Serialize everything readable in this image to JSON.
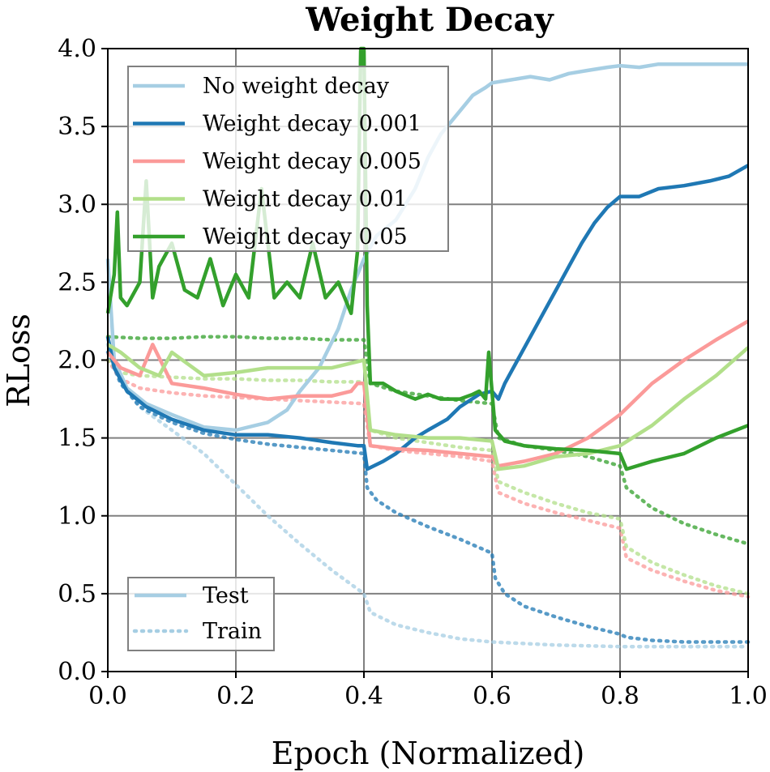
{
  "chart_data": {
    "type": "line",
    "title": "Weight Decay",
    "xlabel": "Epoch (Normalized)",
    "ylabel": "RLoss",
    "xlim": [
      0.0,
      1.0
    ],
    "ylim": [
      0.0,
      4.0
    ],
    "xticks": [
      "0.0",
      "0.2",
      "0.4",
      "0.6",
      "0.8",
      "1.0"
    ],
    "yticks": [
      "0.0",
      "0.5",
      "1.0",
      "1.5",
      "2.0",
      "2.5",
      "3.0",
      "3.5",
      "4.0"
    ],
    "grid": true,
    "legend_placement": "top-left",
    "style_legend_placement": "bottom-left",
    "style_legend": [
      {
        "label": "Test",
        "dash": "solid"
      },
      {
        "label": "Train",
        "dash": "dotted"
      }
    ],
    "series": [
      {
        "name": "No weight decay",
        "color": "#a6cee3",
        "test": [
          [
            0.0,
            2.65
          ],
          [
            0.01,
            2.0
          ],
          [
            0.03,
            1.82
          ],
          [
            0.06,
            1.72
          ],
          [
            0.1,
            1.65
          ],
          [
            0.15,
            1.57
          ],
          [
            0.2,
            1.55
          ],
          [
            0.25,
            1.6
          ],
          [
            0.28,
            1.68
          ],
          [
            0.3,
            1.8
          ],
          [
            0.33,
            1.95
          ],
          [
            0.36,
            2.2
          ],
          [
            0.38,
            2.45
          ],
          [
            0.4,
            2.65
          ],
          [
            0.42,
            2.8
          ],
          [
            0.45,
            2.9
          ],
          [
            0.48,
            3.1
          ],
          [
            0.5,
            3.3
          ],
          [
            0.52,
            3.45
          ],
          [
            0.55,
            3.6
          ],
          [
            0.57,
            3.7
          ],
          [
            0.59,
            3.75
          ],
          [
            0.6,
            3.78
          ],
          [
            0.63,
            3.8
          ],
          [
            0.66,
            3.82
          ],
          [
            0.69,
            3.8
          ],
          [
            0.72,
            3.84
          ],
          [
            0.75,
            3.86
          ],
          [
            0.78,
            3.88
          ],
          [
            0.8,
            3.89
          ],
          [
            0.83,
            3.88
          ],
          [
            0.86,
            3.9
          ],
          [
            0.9,
            3.9
          ],
          [
            0.95,
            3.9
          ],
          [
            1.0,
            3.9
          ]
        ],
        "train": [
          [
            0.0,
            2.1
          ],
          [
            0.02,
            1.85
          ],
          [
            0.05,
            1.7
          ],
          [
            0.1,
            1.55
          ],
          [
            0.15,
            1.4
          ],
          [
            0.2,
            1.2
          ],
          [
            0.25,
            1.0
          ],
          [
            0.3,
            0.82
          ],
          [
            0.35,
            0.65
          ],
          [
            0.4,
            0.5
          ],
          [
            0.41,
            0.38
          ],
          [
            0.45,
            0.3
          ],
          [
            0.5,
            0.25
          ],
          [
            0.55,
            0.21
          ],
          [
            0.6,
            0.19
          ],
          [
            0.65,
            0.18
          ],
          [
            0.7,
            0.17
          ],
          [
            0.8,
            0.16
          ],
          [
            0.9,
            0.16
          ],
          [
            1.0,
            0.16
          ]
        ]
      },
      {
        "name": "Weight decay 0.001",
        "color": "#1f78b4",
        "test": [
          [
            0.0,
            2.15
          ],
          [
            0.01,
            1.95
          ],
          [
            0.03,
            1.8
          ],
          [
            0.06,
            1.7
          ],
          [
            0.1,
            1.62
          ],
          [
            0.15,
            1.55
          ],
          [
            0.2,
            1.52
          ],
          [
            0.25,
            1.52
          ],
          [
            0.3,
            1.5
          ],
          [
            0.35,
            1.47
          ],
          [
            0.39,
            1.45
          ],
          [
            0.4,
            1.45
          ],
          [
            0.405,
            1.3
          ],
          [
            0.43,
            1.35
          ],
          [
            0.45,
            1.4
          ],
          [
            0.48,
            1.5
          ],
          [
            0.5,
            1.55
          ],
          [
            0.53,
            1.62
          ],
          [
            0.55,
            1.7
          ],
          [
            0.58,
            1.78
          ],
          [
            0.6,
            1.8
          ],
          [
            0.61,
            1.75
          ],
          [
            0.62,
            1.85
          ],
          [
            0.64,
            2.0
          ],
          [
            0.66,
            2.15
          ],
          [
            0.68,
            2.3
          ],
          [
            0.7,
            2.45
          ],
          [
            0.72,
            2.6
          ],
          [
            0.74,
            2.75
          ],
          [
            0.76,
            2.88
          ],
          [
            0.78,
            2.98
          ],
          [
            0.8,
            3.05
          ],
          [
            0.83,
            3.05
          ],
          [
            0.86,
            3.1
          ],
          [
            0.9,
            3.12
          ],
          [
            0.94,
            3.15
          ],
          [
            0.97,
            3.18
          ],
          [
            1.0,
            3.25
          ]
        ],
        "train": [
          [
            0.0,
            2.05
          ],
          [
            0.02,
            1.85
          ],
          [
            0.05,
            1.7
          ],
          [
            0.1,
            1.6
          ],
          [
            0.15,
            1.53
          ],
          [
            0.2,
            1.49
          ],
          [
            0.25,
            1.46
          ],
          [
            0.3,
            1.44
          ],
          [
            0.35,
            1.42
          ],
          [
            0.4,
            1.4
          ],
          [
            0.405,
            1.18
          ],
          [
            0.42,
            1.1
          ],
          [
            0.45,
            1.02
          ],
          [
            0.5,
            0.93
          ],
          [
            0.55,
            0.85
          ],
          [
            0.6,
            0.76
          ],
          [
            0.605,
            0.6
          ],
          [
            0.62,
            0.5
          ],
          [
            0.65,
            0.42
          ],
          [
            0.7,
            0.35
          ],
          [
            0.75,
            0.29
          ],
          [
            0.8,
            0.24
          ],
          [
            0.81,
            0.22
          ],
          [
            0.85,
            0.2
          ],
          [
            0.9,
            0.19
          ],
          [
            1.0,
            0.19
          ]
        ]
      },
      {
        "name": "Weight decay 0.005",
        "color": "#fb9a99",
        "test": [
          [
            0.0,
            2.05
          ],
          [
            0.02,
            1.95
          ],
          [
            0.05,
            1.9
          ],
          [
            0.07,
            2.1
          ],
          [
            0.1,
            1.85
          ],
          [
            0.15,
            1.82
          ],
          [
            0.2,
            1.78
          ],
          [
            0.25,
            1.75
          ],
          [
            0.3,
            1.77
          ],
          [
            0.35,
            1.77
          ],
          [
            0.38,
            1.8
          ],
          [
            0.39,
            1.85
          ],
          [
            0.4,
            1.85
          ],
          [
            0.41,
            1.45
          ],
          [
            0.45,
            1.43
          ],
          [
            0.5,
            1.42
          ],
          [
            0.55,
            1.4
          ],
          [
            0.6,
            1.38
          ],
          [
            0.61,
            1.32
          ],
          [
            0.65,
            1.35
          ],
          [
            0.7,
            1.4
          ],
          [
            0.75,
            1.5
          ],
          [
            0.8,
            1.65
          ],
          [
            0.85,
            1.85
          ],
          [
            0.9,
            2.0
          ],
          [
            0.95,
            2.13
          ],
          [
            1.0,
            2.25
          ]
        ],
        "train": [
          [
            0.0,
            2.0
          ],
          [
            0.02,
            1.88
          ],
          [
            0.05,
            1.82
          ],
          [
            0.1,
            1.79
          ],
          [
            0.15,
            1.77
          ],
          [
            0.2,
            1.76
          ],
          [
            0.25,
            1.75
          ],
          [
            0.3,
            1.74
          ],
          [
            0.35,
            1.73
          ],
          [
            0.4,
            1.72
          ],
          [
            0.41,
            1.45
          ],
          [
            0.45,
            1.42
          ],
          [
            0.5,
            1.4
          ],
          [
            0.55,
            1.38
          ],
          [
            0.6,
            1.35
          ],
          [
            0.61,
            1.15
          ],
          [
            0.65,
            1.08
          ],
          [
            0.7,
            1.02
          ],
          [
            0.75,
            0.97
          ],
          [
            0.8,
            0.92
          ],
          [
            0.81,
            0.73
          ],
          [
            0.85,
            0.65
          ],
          [
            0.9,
            0.58
          ],
          [
            0.95,
            0.52
          ],
          [
            1.0,
            0.48
          ]
        ]
      },
      {
        "name": "Weight decay 0.01",
        "color": "#b2df8a",
        "test": [
          [
            0.0,
            2.1
          ],
          [
            0.02,
            2.05
          ],
          [
            0.05,
            1.95
          ],
          [
            0.08,
            1.9
          ],
          [
            0.1,
            2.05
          ],
          [
            0.15,
            1.9
          ],
          [
            0.2,
            1.92
          ],
          [
            0.25,
            1.95
          ],
          [
            0.3,
            1.95
          ],
          [
            0.35,
            1.95
          ],
          [
            0.38,
            1.98
          ],
          [
            0.4,
            2.0
          ],
          [
            0.41,
            1.55
          ],
          [
            0.45,
            1.52
          ],
          [
            0.5,
            1.5
          ],
          [
            0.55,
            1.5
          ],
          [
            0.6,
            1.48
          ],
          [
            0.61,
            1.3
          ],
          [
            0.65,
            1.32
          ],
          [
            0.7,
            1.38
          ],
          [
            0.75,
            1.4
          ],
          [
            0.8,
            1.45
          ],
          [
            0.85,
            1.58
          ],
          [
            0.9,
            1.75
          ],
          [
            0.95,
            1.9
          ],
          [
            1.0,
            2.08
          ]
        ],
        "train": [
          [
            0.0,
            2.0
          ],
          [
            0.02,
            1.92
          ],
          [
            0.05,
            1.9
          ],
          [
            0.1,
            1.89
          ],
          [
            0.15,
            1.88
          ],
          [
            0.2,
            1.88
          ],
          [
            0.25,
            1.87
          ],
          [
            0.3,
            1.87
          ],
          [
            0.35,
            1.86
          ],
          [
            0.4,
            1.86
          ],
          [
            0.41,
            1.55
          ],
          [
            0.45,
            1.5
          ],
          [
            0.5,
            1.47
          ],
          [
            0.55,
            1.44
          ],
          [
            0.6,
            1.42
          ],
          [
            0.61,
            1.22
          ],
          [
            0.65,
            1.15
          ],
          [
            0.7,
            1.08
          ],
          [
            0.75,
            1.02
          ],
          [
            0.8,
            0.98
          ],
          [
            0.81,
            0.8
          ],
          [
            0.85,
            0.7
          ],
          [
            0.9,
            0.62
          ],
          [
            0.95,
            0.55
          ],
          [
            1.0,
            0.5
          ]
        ]
      },
      {
        "name": "Weight decay 0.05",
        "color": "#33a02c",
        "test": [
          [
            0.0,
            2.3
          ],
          [
            0.01,
            2.55
          ],
          [
            0.015,
            2.95
          ],
          [
            0.02,
            2.4
          ],
          [
            0.03,
            2.35
          ],
          [
            0.05,
            2.5
          ],
          [
            0.06,
            3.15
          ],
          [
            0.07,
            2.4
          ],
          [
            0.08,
            2.6
          ],
          [
            0.1,
            2.75
          ],
          [
            0.12,
            2.45
          ],
          [
            0.14,
            2.4
          ],
          [
            0.16,
            2.65
          ],
          [
            0.18,
            2.35
          ],
          [
            0.2,
            2.55
          ],
          [
            0.22,
            2.4
          ],
          [
            0.24,
            3.1
          ],
          [
            0.26,
            2.4
          ],
          [
            0.28,
            2.5
          ],
          [
            0.3,
            2.4
          ],
          [
            0.32,
            2.75
          ],
          [
            0.34,
            2.4
          ],
          [
            0.36,
            2.5
          ],
          [
            0.38,
            2.3
          ],
          [
            0.39,
            2.7
          ],
          [
            0.395,
            4.0
          ],
          [
            0.4,
            4.0
          ],
          [
            0.405,
            2.35
          ],
          [
            0.41,
            1.85
          ],
          [
            0.43,
            1.85
          ],
          [
            0.45,
            1.8
          ],
          [
            0.48,
            1.75
          ],
          [
            0.5,
            1.78
          ],
          [
            0.52,
            1.75
          ],
          [
            0.55,
            1.75
          ],
          [
            0.57,
            1.78
          ],
          [
            0.58,
            1.8
          ],
          [
            0.59,
            1.75
          ],
          [
            0.595,
            2.05
          ],
          [
            0.6,
            1.8
          ],
          [
            0.605,
            1.55
          ],
          [
            0.62,
            1.48
          ],
          [
            0.65,
            1.45
          ],
          [
            0.7,
            1.43
          ],
          [
            0.75,
            1.42
          ],
          [
            0.8,
            1.4
          ],
          [
            0.81,
            1.3
          ],
          [
            0.85,
            1.35
          ],
          [
            0.9,
            1.4
          ],
          [
            0.95,
            1.5
          ],
          [
            1.0,
            1.58
          ]
        ],
        "train": [
          [
            0.0,
            2.15
          ],
          [
            0.05,
            2.14
          ],
          [
            0.1,
            2.14
          ],
          [
            0.15,
            2.15
          ],
          [
            0.2,
            2.15
          ],
          [
            0.25,
            2.14
          ],
          [
            0.3,
            2.14
          ],
          [
            0.35,
            2.13
          ],
          [
            0.4,
            2.13
          ],
          [
            0.41,
            1.85
          ],
          [
            0.45,
            1.8
          ],
          [
            0.5,
            1.77
          ],
          [
            0.55,
            1.74
          ],
          [
            0.6,
            1.72
          ],
          [
            0.61,
            1.5
          ],
          [
            0.65,
            1.45
          ],
          [
            0.7,
            1.42
          ],
          [
            0.75,
            1.38
          ],
          [
            0.8,
            1.32
          ],
          [
            0.81,
            1.18
          ],
          [
            0.85,
            1.05
          ],
          [
            0.9,
            0.95
          ],
          [
            0.95,
            0.88
          ],
          [
            1.0,
            0.82
          ]
        ]
      }
    ]
  }
}
